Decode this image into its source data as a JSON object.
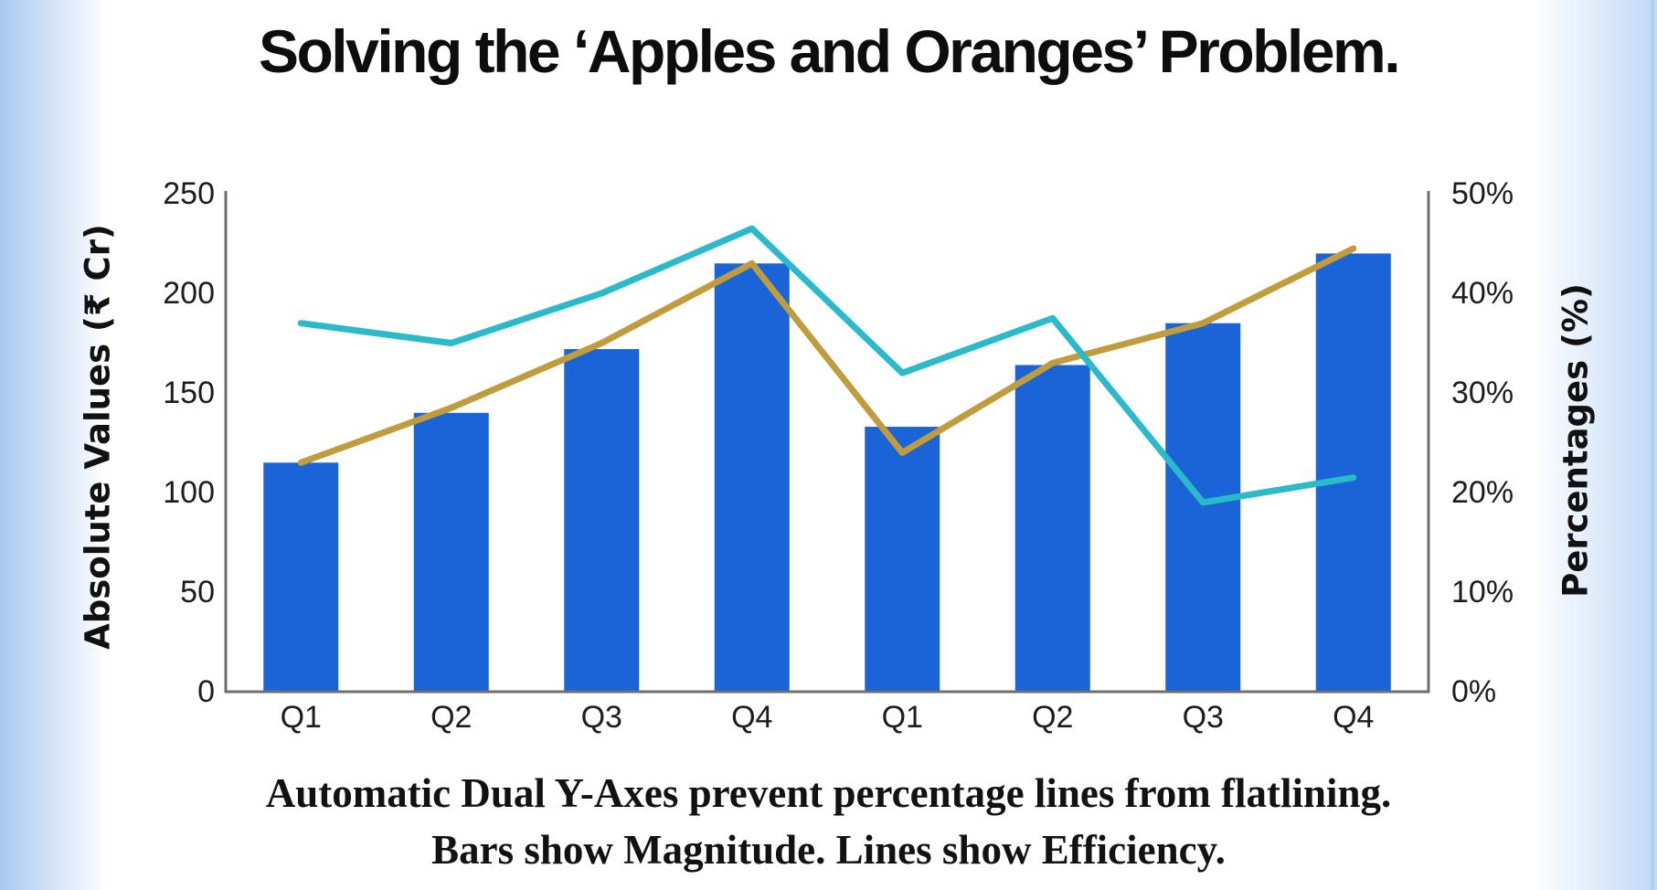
{
  "page": {
    "title": "Solving the ‘Apples and Oranges’ Problem.",
    "caption_line1": "Automatic Dual Y-Axes prevent percentage lines from flatlining.",
    "caption_line2": "Bars show Magnitude. Lines show Efficiency."
  },
  "colors": {
    "bar_blue": "#1b64d8",
    "line_teal": "#2bbac9",
    "line_gold": "#c09c3c",
    "axis_gray": "#6e6e6e",
    "text_dark": "#111111",
    "edge_glow_blue": "#a6c5f0"
  },
  "chart_data": {
    "type": "bar",
    "subtype": "dual-axis combo: bars (left axis) + two lines (right axis)",
    "categories": [
      "Q1",
      "Q2",
      "Q3",
      "Q4",
      "Q1",
      "Q2",
      "Q3",
      "Q4"
    ],
    "left_axis": {
      "label": "Absolute Values (₹ Cr)",
      "ticks": [
        "250",
        "200",
        "150",
        "100",
        "50",
        "0"
      ],
      "range": [
        0,
        250
      ]
    },
    "right_axis": {
      "label": "Percentages (%)",
      "ticks": [
        "50%",
        "40%",
        "30%",
        "20%",
        "10%",
        "0%"
      ],
      "range": [
        0,
        50
      ]
    },
    "grid": "off",
    "legend": "none",
    "series": [
      {
        "name": "magnitude-bars",
        "type": "bar",
        "axis": "left",
        "color": "#1b64d8",
        "values": [
          115,
          140,
          172,
          215,
          133,
          164,
          185,
          220
        ]
      },
      {
        "name": "efficiency-line-gold",
        "type": "line",
        "axis": "right",
        "color": "#c09c3c",
        "values": [
          23,
          28.5,
          35,
          43,
          24,
          33,
          37,
          44.5
        ]
      },
      {
        "name": "efficiency-line-teal",
        "type": "line",
        "axis": "right",
        "color": "#2bbac9",
        "values": [
          37,
          35,
          40,
          46.5,
          32,
          37.5,
          19,
          21.5
        ]
      }
    ]
  }
}
